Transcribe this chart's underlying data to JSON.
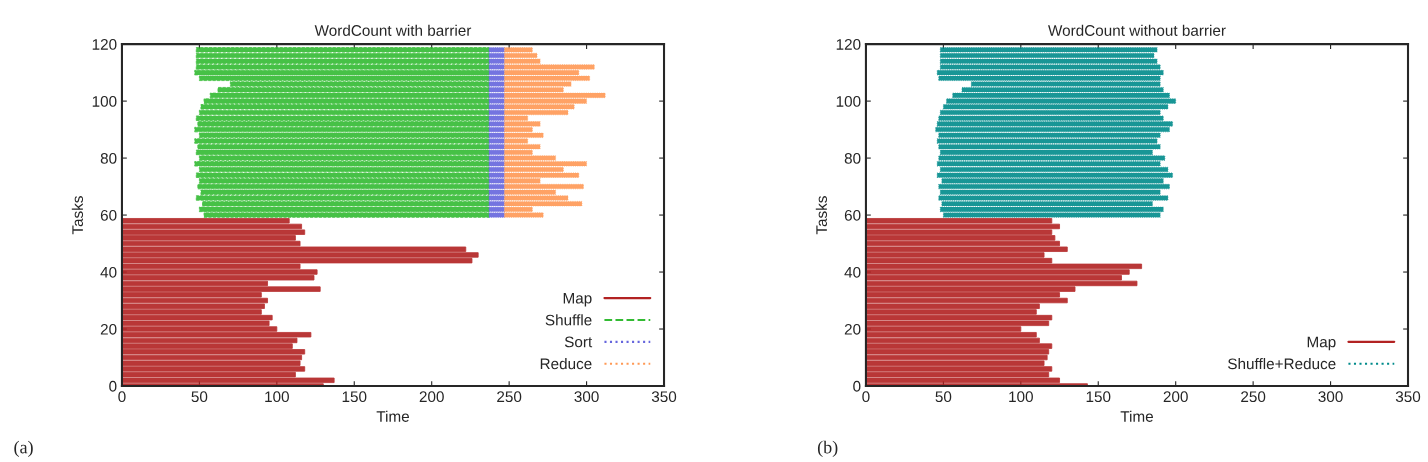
{
  "chart_data": [
    {
      "type": "bar",
      "orientation": "horizontal",
      "title": "WordCount with barrier",
      "xlabel": "Time",
      "ylabel": "Tasks",
      "xlim": [
        0,
        350
      ],
      "xticks": [
        0,
        50,
        100,
        150,
        200,
        250,
        300,
        350
      ],
      "ylim": [
        0,
        120
      ],
      "yticks": [
        0,
        20,
        40,
        60,
        80,
        100,
        120
      ],
      "grid": false,
      "legend": "bottom right",
      "annotations": [
        "(a)"
      ],
      "series": [
        {
          "name": "Map",
          "color": "#b22222",
          "line_style": "solid",
          "x": [
            0,
            2,
            4,
            6,
            8,
            10,
            12,
            14,
            16,
            18,
            20,
            22,
            24,
            26,
            28,
            30,
            32,
            34,
            36,
            38,
            40,
            42,
            44,
            46,
            48,
            50,
            52,
            54,
            56,
            58
          ],
          "base": [
            0,
            0,
            0,
            0,
            0,
            0,
            0,
            0,
            0,
            0,
            0,
            0,
            0,
            0,
            0,
            0,
            0,
            0,
            0,
            0,
            0,
            0,
            0,
            0,
            0,
            0,
            0,
            0,
            0,
            0
          ],
          "values": [
            130,
            137,
            112,
            118,
            115,
            116,
            118,
            110,
            113,
            122,
            100,
            95,
            97,
            90,
            92,
            94,
            90,
            128,
            94,
            124,
            126,
            115,
            226,
            230,
            222,
            115,
            112,
            118,
            116,
            108
          ]
        },
        {
          "name": "Shuffle",
          "color": "#33bb33",
          "line_style": "dashed",
          "x": [
            60,
            62,
            64,
            66,
            68,
            70,
            72,
            74,
            76,
            78,
            80,
            82,
            84,
            86,
            88,
            90,
            92,
            94,
            96,
            98,
            100,
            102,
            104,
            106,
            108,
            110,
            112,
            114,
            116,
            118
          ],
          "base": [
            53,
            50,
            52,
            48,
            51,
            49,
            50,
            48,
            50,
            47,
            50,
            48,
            49,
            47,
            50,
            47,
            49,
            48,
            50,
            51,
            53,
            57,
            62,
            70,
            50,
            47,
            48,
            48,
            48,
            48
          ],
          "values": [
            184,
            187,
            185,
            189,
            186,
            188,
            187,
            189,
            187,
            190,
            187,
            189,
            188,
            190,
            187,
            190,
            188,
            189,
            187,
            186,
            184,
            180,
            175,
            167,
            187,
            190,
            189,
            189,
            189,
            189
          ]
        },
        {
          "name": "Sort",
          "color": "#6666dd",
          "line_style": "dotted",
          "x": [
            60,
            62,
            64,
            66,
            68,
            70,
            72,
            74,
            76,
            78,
            80,
            82,
            84,
            86,
            88,
            90,
            92,
            94,
            96,
            98,
            100,
            102,
            104,
            106,
            108,
            110,
            112,
            114,
            116,
            118
          ],
          "base": [
            237,
            237,
            237,
            237,
            237,
            237,
            237,
            237,
            237,
            237,
            237,
            237,
            237,
            237,
            237,
            237,
            237,
            237,
            237,
            237,
            237,
            237,
            237,
            237,
            237,
            237,
            237,
            237,
            237,
            237
          ],
          "values": [
            10,
            10,
            10,
            10,
            10,
            10,
            10,
            10,
            10,
            10,
            10,
            10,
            10,
            10,
            10,
            10,
            10,
            10,
            10,
            10,
            10,
            10,
            10,
            10,
            10,
            10,
            10,
            10,
            10,
            10
          ]
        },
        {
          "name": "Reduce",
          "color": "#ff9955",
          "line_style": "dotted",
          "x": [
            60,
            62,
            64,
            66,
            68,
            70,
            72,
            74,
            76,
            78,
            80,
            82,
            84,
            86,
            88,
            90,
            92,
            94,
            96,
            98,
            100,
            102,
            104,
            106,
            108,
            110,
            112,
            114,
            116,
            118
          ],
          "base": [
            247,
            247,
            247,
            247,
            247,
            247,
            247,
            247,
            247,
            247,
            247,
            247,
            247,
            247,
            247,
            247,
            247,
            247,
            247,
            247,
            247,
            247,
            247,
            247,
            247,
            247,
            247,
            247,
            247,
            247
          ],
          "values": [
            25,
            18,
            50,
            41,
            33,
            51,
            23,
            48,
            38,
            53,
            33,
            18,
            23,
            15,
            25,
            18,
            23,
            15,
            41,
            45,
            53,
            65,
            38,
            43,
            55,
            48,
            58,
            23,
            21,
            18
          ]
        }
      ]
    },
    {
      "type": "bar",
      "orientation": "horizontal",
      "title": "WordCount without barrier",
      "xlabel": "Time",
      "ylabel": "Tasks",
      "xlim": [
        0,
        350
      ],
      "xticks": [
        0,
        50,
        100,
        150,
        200,
        250,
        300,
        350
      ],
      "ylim": [
        0,
        120
      ],
      "yticks": [
        0,
        20,
        40,
        60,
        80,
        100,
        120
      ],
      "grid": false,
      "legend": "bottom right",
      "annotations": [
        "(b)"
      ],
      "series": [
        {
          "name": "Map",
          "color": "#b22222",
          "line_style": "solid",
          "x": [
            0,
            2,
            4,
            6,
            8,
            10,
            12,
            14,
            16,
            18,
            20,
            22,
            24,
            26,
            28,
            30,
            32,
            34,
            36,
            38,
            40,
            42,
            44,
            46,
            48,
            50,
            52,
            54,
            56,
            58
          ],
          "base": [
            0,
            0,
            0,
            0,
            0,
            0,
            0,
            0,
            0,
            0,
            0,
            0,
            0,
            0,
            0,
            0,
            0,
            0,
            0,
            0,
            0,
            0,
            0,
            0,
            0,
            0,
            0,
            0,
            0,
            0
          ],
          "values": [
            143,
            125,
            118,
            120,
            115,
            117,
            118,
            120,
            112,
            110,
            100,
            118,
            120,
            110,
            112,
            130,
            125,
            135,
            175,
            165,
            170,
            178,
            120,
            115,
            130,
            125,
            122,
            120,
            125,
            120
          ]
        },
        {
          "name": "Shuffle+Reduce",
          "color": "#008b8b",
          "line_style": "dotted",
          "x": [
            60,
            62,
            64,
            66,
            68,
            70,
            72,
            74,
            76,
            78,
            80,
            82,
            84,
            86,
            88,
            90,
            92,
            94,
            96,
            98,
            100,
            102,
            104,
            106,
            108,
            110,
            112,
            114,
            116,
            118
          ],
          "base": [
            50,
            48,
            49,
            47,
            48,
            47,
            49,
            46,
            48,
            46,
            47,
            48,
            47,
            46,
            47,
            45,
            46,
            47,
            48,
            50,
            52,
            56,
            62,
            68,
            47,
            46,
            48,
            48,
            48,
            48
          ],
          "values": [
            140,
            144,
            136,
            148,
            142,
            149,
            143,
            152,
            147,
            144,
            146,
            137,
            143,
            142,
            143,
            151,
            152,
            145,
            142,
            145,
            148,
            140,
            130,
            122,
            143,
            146,
            142,
            140,
            138,
            140
          ]
        }
      ]
    }
  ]
}
